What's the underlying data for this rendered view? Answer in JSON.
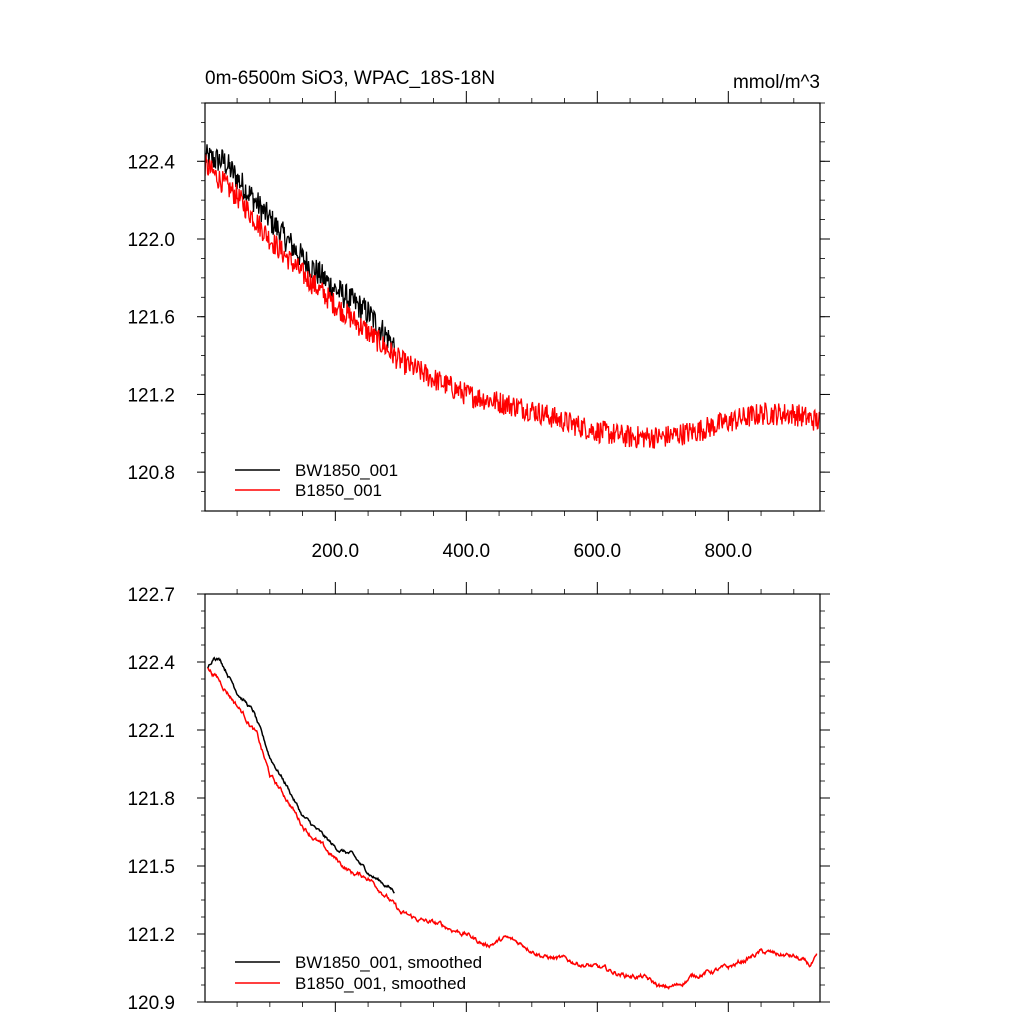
{
  "chart_data": [
    {
      "type": "line",
      "title": "0m-6500m SiO3, WPAC_18S-18N",
      "units": "mmol/m^3",
      "xlim": [
        1,
        940
      ],
      "ylim": [
        120.6,
        122.7
      ],
      "xticks": [
        200,
        400,
        600,
        800
      ],
      "xtick_labels": [
        "200.0",
        "400.0",
        "600.0",
        "800.0"
      ],
      "yticks": [
        120.8,
        121.2,
        121.6,
        122.0,
        122.4
      ],
      "ytick_labels": [
        "120.8",
        "121.2",
        "121.6",
        "122.0",
        "122.4"
      ],
      "legend_position": "bottom-left",
      "series": [
        {
          "name": "BW1850_001",
          "color": "#000000",
          "noise": 0.07,
          "trend": [
            [
              1,
              122.42
            ],
            [
              30,
              122.4
            ],
            [
              60,
              122.27
            ],
            [
              100,
              122.1
            ],
            [
              150,
              121.9
            ],
            [
              200,
              121.74
            ],
            [
              250,
              121.62
            ],
            [
              290,
              121.45
            ]
          ]
        },
        {
          "name": "B1850_001",
          "color": "#ff0000",
          "noise": 0.06,
          "trend": [
            [
              1,
              122.38
            ],
            [
              50,
              122.22
            ],
            [
              100,
              122.0
            ],
            [
              150,
              121.82
            ],
            [
              200,
              121.66
            ],
            [
              250,
              121.52
            ],
            [
              300,
              121.37
            ],
            [
              350,
              121.28
            ],
            [
              400,
              121.2
            ],
            [
              450,
              121.16
            ],
            [
              500,
              121.12
            ],
            [
              550,
              121.06
            ],
            [
              600,
              121.01
            ],
            [
              650,
              120.98
            ],
            [
              700,
              120.98
            ],
            [
              750,
              121.01
            ],
            [
              800,
              121.06
            ],
            [
              850,
              121.1
            ],
            [
              900,
              121.1
            ],
            [
              940,
              121.06
            ]
          ]
        }
      ]
    },
    {
      "type": "line",
      "xlim": [
        1,
        940
      ],
      "ylim": [
        120.9,
        122.7
      ],
      "xticks": [
        200,
        400,
        600,
        800
      ],
      "yticks": [
        120.9,
        121.2,
        121.5,
        121.8,
        122.1,
        122.4,
        122.7
      ],
      "ytick_labels": [
        "120.9",
        "121.2",
        "121.5",
        "121.8",
        "122.1",
        "122.4",
        "122.7"
      ],
      "legend_position": "bottom-left",
      "series": [
        {
          "name": "BW1850_001, smoothed",
          "color": "#000000",
          "noise": 0.012,
          "trend": [
            [
              5,
              122.37
            ],
            [
              15,
              122.43
            ],
            [
              25,
              122.41
            ],
            [
              50,
              122.27
            ],
            [
              75,
              122.18
            ],
            [
              100,
              121.98
            ],
            [
              125,
              121.86
            ],
            [
              150,
              121.72
            ],
            [
              175,
              121.65
            ],
            [
              200,
              121.58
            ],
            [
              225,
              121.55
            ],
            [
              240,
              121.5
            ],
            [
              255,
              121.46
            ],
            [
              270,
              121.43
            ],
            [
              290,
              121.39
            ]
          ]
        },
        {
          "name": "B1850_001, smoothed",
          "color": "#ff0000",
          "noise": 0.015,
          "trend": [
            [
              5,
              122.37
            ],
            [
              20,
              122.33
            ],
            [
              40,
              122.25
            ],
            [
              60,
              122.17
            ],
            [
              80,
              122.08
            ],
            [
              100,
              121.9
            ],
            [
              125,
              121.8
            ],
            [
              150,
              121.68
            ],
            [
              175,
              121.6
            ],
            [
              200,
              121.53
            ],
            [
              225,
              121.47
            ],
            [
              250,
              121.45
            ],
            [
              275,
              121.38
            ],
            [
              300,
              121.29
            ],
            [
              330,
              121.26
            ],
            [
              360,
              121.24
            ],
            [
              400,
              121.2
            ],
            [
              430,
              121.15
            ],
            [
              460,
              121.18
            ],
            [
              490,
              121.15
            ],
            [
              520,
              121.1
            ],
            [
              560,
              121.08
            ],
            [
              600,
              121.05
            ],
            [
              640,
              121.02
            ],
            [
              670,
              121.01
            ],
            [
              700,
              120.96
            ],
            [
              720,
              120.97
            ],
            [
              750,
              121.02
            ],
            [
              800,
              121.05
            ],
            [
              850,
              121.12
            ],
            [
              900,
              121.1
            ],
            [
              925,
              121.06
            ],
            [
              935,
              121.09
            ]
          ]
        }
      ]
    }
  ]
}
